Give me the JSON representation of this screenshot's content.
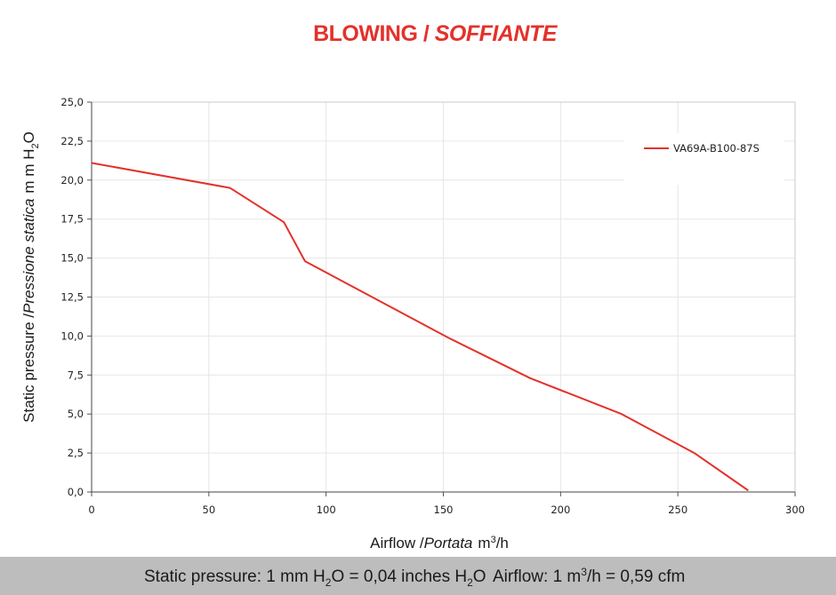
{
  "chart_data": {
    "type": "line",
    "title": {
      "main": "BLOWING /",
      "italic": "SOFFIANTE"
    },
    "xlabel": {
      "plain": "Airflow /",
      "italic": "Portata",
      "unit_a": "m",
      "unit_sup": "3",
      "unit_b": "/h"
    },
    "ylabel": {
      "plain": "Static pressure /",
      "italic": "Pressione statica",
      "unit_a": "m m  H",
      "unit_sub": "2",
      "unit_b": "O"
    },
    "xlim": [
      0,
      300
    ],
    "ylim": [
      0,
      25
    ],
    "x_ticks": [
      "0",
      "50",
      "100",
      "150",
      "200",
      "250",
      "300"
    ],
    "y_ticks": [
      "0,0",
      "2,5",
      "5,0",
      "7,5",
      "10,0",
      "12,5",
      "15,0",
      "17,5",
      "20,0",
      "22,5",
      "25,0"
    ],
    "grid": true,
    "legend_position": "top-right",
    "series": [
      {
        "name": "VA69A-B100-87S",
        "color": "#e4312b",
        "x": [
          0,
          59,
          82,
          91,
          152,
          187,
          226,
          257,
          280
        ],
        "y": [
          21.1,
          19.5,
          17.3,
          14.8,
          9.9,
          7.3,
          5.0,
          2.5,
          0.1
        ]
      }
    ]
  },
  "footer": {
    "pressure": {
      "a": "Static pressure: 1 mm H",
      "sub": "2",
      "b": "O = 0,04 inches H",
      "sub2": "2",
      "c": "O"
    },
    "airflow": {
      "a": "Airflow: 1 m",
      "sup": "3",
      "b": "/h = 0,59 cfm"
    }
  }
}
